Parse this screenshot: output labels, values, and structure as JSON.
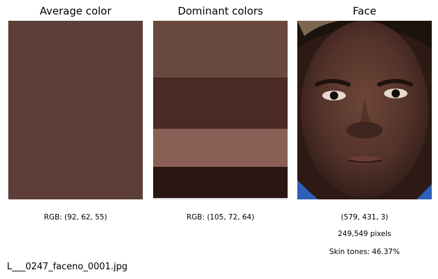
{
  "panels": {
    "average": {
      "title": "Average color",
      "caption": "RGB: (92, 62, 55)",
      "color": "#5c3e37"
    },
    "dominant": {
      "title": "Dominant colors",
      "caption": "RGB: (105, 72, 64)",
      "bands": [
        {
          "color": "#694840",
          "share": 0.32
        },
        {
          "color": "#4a2a22",
          "share": 0.29
        },
        {
          "color": "#8a6056",
          "share": 0.215
        },
        {
          "color": "#2a1714",
          "share": 0.175
        }
      ]
    },
    "face": {
      "title": "Face",
      "dimensions": "(579, 431, 3)",
      "pixels": "249,549 pixels",
      "skin_tones": "Skin tones: 46.37%"
    }
  },
  "footer": {
    "filename": "L___0247_faceno_0001.jpg"
  }
}
